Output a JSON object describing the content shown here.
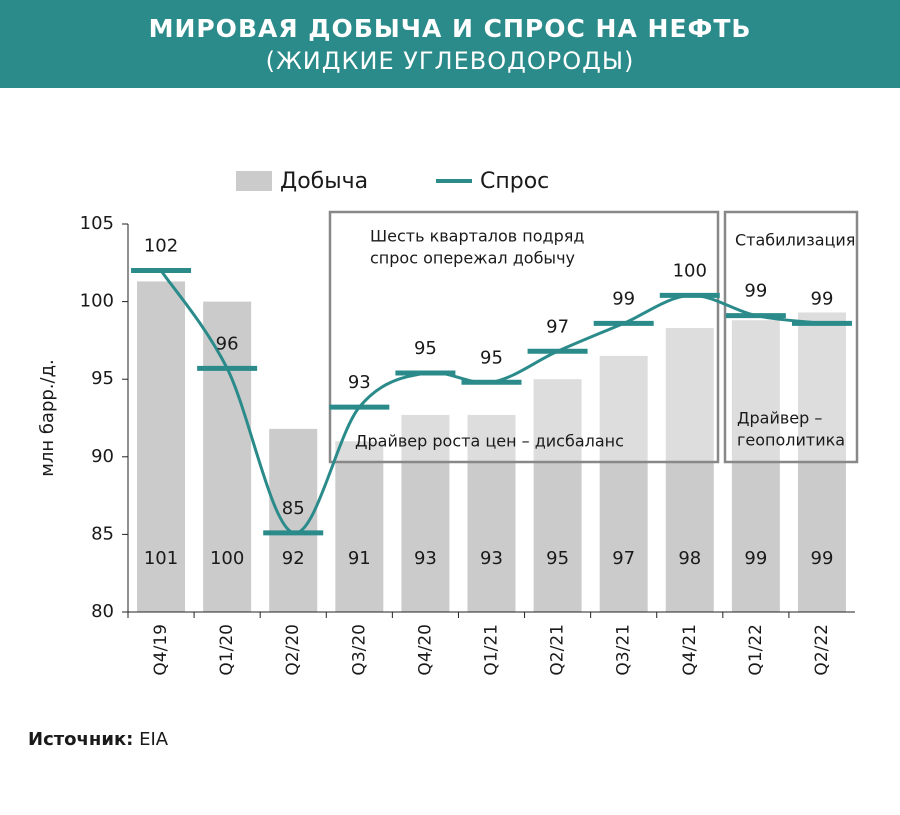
{
  "chart_data": {
    "type": "bar_line",
    "title": "МИРОВАЯ ДОБЫЧА И СПРОС НА НЕФТЬ",
    "subtitle": "(ЖИДКИЕ УГЛЕВОДОРОДЫ)",
    "y_label": "млн барр./д.",
    "categories": [
      "Q4/19",
      "Q1/20",
      "Q2/20",
      "Q3/20",
      "Q4/20",
      "Q1/21",
      "Q2/21",
      "Q3/21",
      "Q4/21",
      "Q1/22",
      "Q2/22"
    ],
    "series": [
      {
        "name": "Добыча",
        "type": "bar",
        "color": "#cbcbcb",
        "values": [
          101.3,
          100,
          91.8,
          91,
          92.7,
          92.7,
          95,
          96.5,
          98.3,
          98.8,
          99.3
        ],
        "value_labels": [
          "101",
          "100",
          "92",
          "91",
          "93",
          "93",
          "95",
          "97",
          "98",
          "99",
          "99"
        ]
      },
      {
        "name": "Спрос",
        "type": "line",
        "color": "#2a8b8a",
        "values": [
          102,
          95.7,
          85.1,
          93.2,
          95.4,
          94.8,
          96.8,
          98.6,
          100.4,
          99.1,
          98.6
        ],
        "value_labels": [
          "102",
          "96",
          "85",
          "93",
          "95",
          "95",
          "97",
          "99",
          "100",
          "99",
          "99"
        ]
      }
    ],
    "ylim": [
      80,
      105
    ],
    "yticks": [
      80,
      85,
      90,
      95,
      100,
      105
    ],
    "annotations": [
      "Шесть кварталов подряд",
      "спрос опережал добычу",
      "Драйвер роста цен – дисбаланс",
      "Стабилизация",
      "Драйвер –",
      "геополитика"
    ],
    "source_label": "Источник:",
    "source": "EIA"
  }
}
